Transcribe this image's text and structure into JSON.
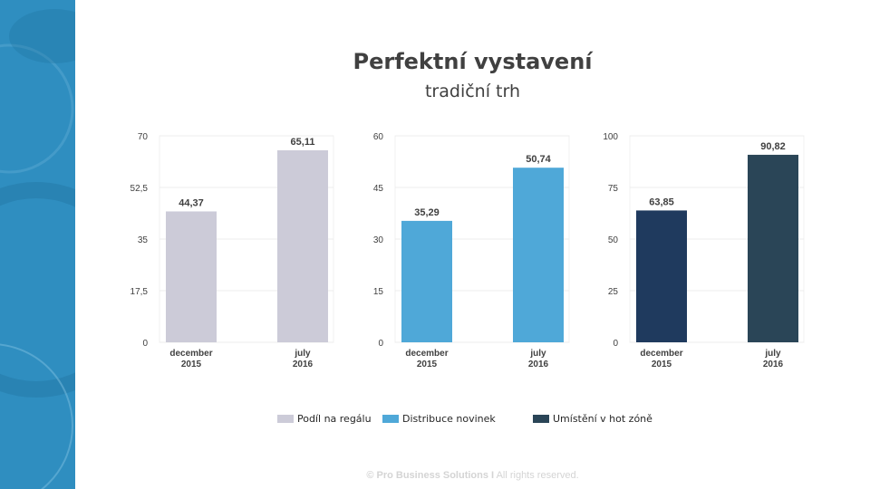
{
  "slide": {
    "title": "Perfektní vystavení",
    "subtitle": "tradiční trh",
    "footer_brand": "© Pro Business Solutions",
    "footer_separator": "I",
    "footer_rights": "All rights reserved."
  },
  "legend": [
    {
      "label": "Podíl na regálu",
      "color": "#cccbd8"
    },
    {
      "label": "Distribuce novinek",
      "color": "#4fa8d8"
    },
    {
      "label": "Umístění v hot zóně",
      "color": "#2a4557"
    }
  ],
  "chart_data": [
    {
      "type": "bar",
      "categories": [
        [
          "december",
          "2015"
        ],
        [
          "july",
          "2016"
        ]
      ],
      "values": [
        44.37,
        65.11
      ],
      "value_labels": [
        "44,37",
        "65,11"
      ],
      "ylim": [
        0,
        70
      ],
      "yticks": [
        "0",
        "17,5",
        "35",
        "52,5",
        "70"
      ],
      "colors": [
        "#cccbd8",
        "#cccbd8"
      ],
      "grid": true
    },
    {
      "type": "bar",
      "categories": [
        [
          "december",
          "2015"
        ],
        [
          "july",
          "2016"
        ]
      ],
      "values": [
        35.29,
        50.74
      ],
      "value_labels": [
        "35,29",
        "50,74"
      ],
      "ylim": [
        0,
        60
      ],
      "yticks": [
        "0",
        "15",
        "30",
        "45",
        "60"
      ],
      "colors": [
        "#4fa8d8",
        "#4fa8d8"
      ],
      "grid": true
    },
    {
      "type": "bar",
      "categories": [
        [
          "december",
          "2015"
        ],
        [
          "july",
          "2016"
        ]
      ],
      "values": [
        63.85,
        90.82
      ],
      "value_labels": [
        "63,85",
        "90,82"
      ],
      "ylim": [
        0,
        100
      ],
      "yticks": [
        "0",
        "25",
        "50",
        "75",
        "100"
      ],
      "colors": [
        "#1f3a5e",
        "#2a4557"
      ],
      "grid": true
    }
  ]
}
